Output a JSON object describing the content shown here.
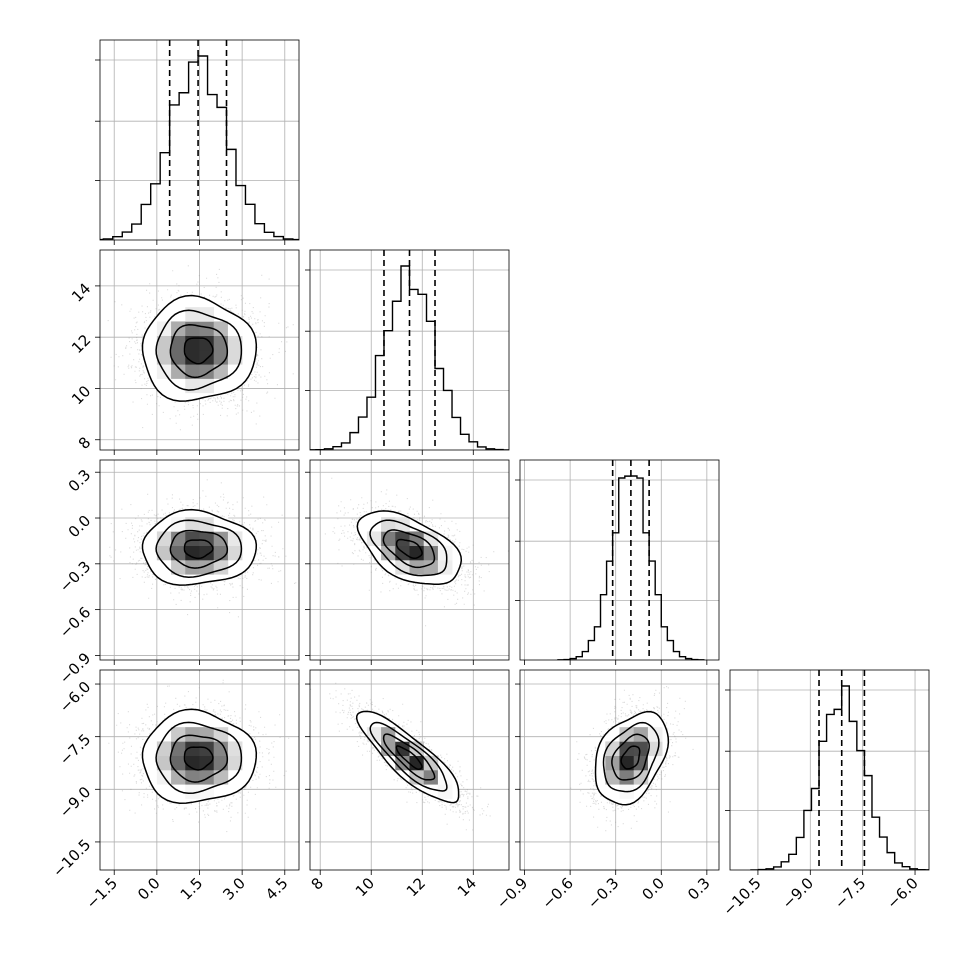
{
  "chart_data": {
    "type": "corner",
    "title": "",
    "params": [
      {
        "ticks": [
          -1.5,
          0.0,
          1.5,
          3.0,
          4.5
        ],
        "tick_labels": [
          "−1.5",
          "0.0",
          "1.5",
          "3.0",
          "4.5"
        ],
        "range": [
          -2.0,
          5.0
        ],
        "mean": 1.45,
        "std": 1.0,
        "quantiles": [
          0.45,
          1.45,
          2.45
        ]
      },
      {
        "ticks": [
          8,
          10,
          12,
          14
        ],
        "tick_labels": [
          "8",
          "10",
          "12",
          "14"
        ],
        "range": [
          7.6,
          15.4
        ],
        "mean": 11.5,
        "std": 1.0,
        "quantiles": [
          10.5,
          11.5,
          12.5
        ]
      },
      {
        "ticks": [
          -0.9,
          -0.6,
          -0.3,
          0.0,
          0.3
        ],
        "tick_labels": [
          "−0.9",
          "−0.6",
          "−0.3",
          "0.0",
          "0.3"
        ],
        "range": [
          -0.93,
          0.38
        ],
        "mean": -0.2,
        "std": 0.12,
        "quantiles": [
          -0.32,
          -0.2,
          -0.08
        ]
      },
      {
        "ticks": [
          -10.5,
          -9.0,
          -7.5,
          -6.0
        ],
        "tick_labels": [
          "−10.5",
          "−9.0",
          "−7.5",
          "−6.0"
        ],
        "range": [
          -11.3,
          -5.6
        ],
        "mean": -8.1,
        "std": 0.65,
        "quantiles": [
          -8.75,
          -8.1,
          -7.45
        ]
      }
    ],
    "correlations": [
      [
        1,
        0,
        0,
        0
      ],
      [
        0,
        1,
        -0.5,
        -0.85
      ],
      [
        0,
        -0.5,
        1,
        0.35
      ],
      [
        0,
        -0.85,
        0.35,
        1
      ]
    ],
    "contour_levels": [
      "0.5σ",
      "1σ",
      "1.5σ",
      "2σ"
    ],
    "colors": {
      "line": "#000000",
      "grid": "#b0b0b0",
      "points": "#9a9a9a"
    }
  }
}
